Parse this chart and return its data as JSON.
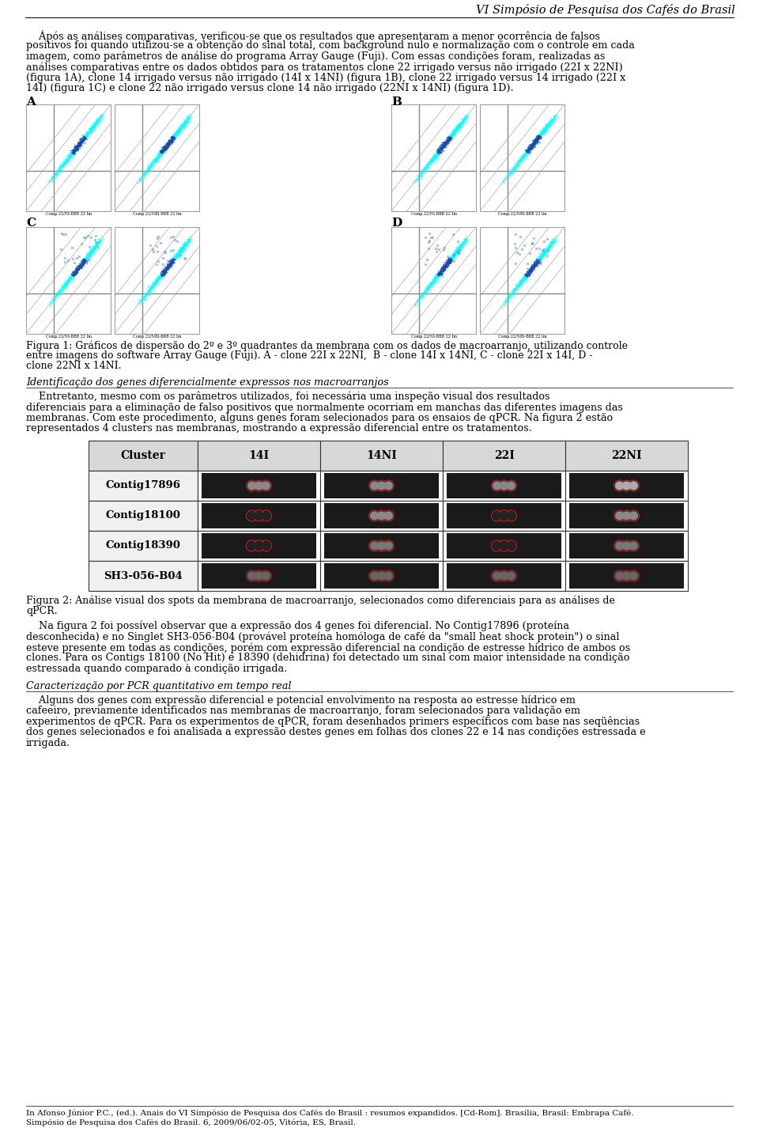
{
  "header_text": "VI Simpósio de Pesquisa dos Cafés do Brasil",
  "para1_lines": [
    "    Ápós as análises comparativas, verificou-se que os resultados que apresentaram a menor ocorrência de falsos",
    "positivos foi quando utilizou-se a obtenção do sinal total, com background nulo e normalização com o controle em cada",
    "imagem, como parâmetros de análise do programa Array Gauge (Fuji). Com essas condições foram, realizadas as",
    "análises comparativas entre os dados obtidos para os tratamentos clone 22 irrigado versus não irrigado (22I x 22NI)",
    "(figura 1A), clone 14 irrigado versus não irrigado (14I x 14NI) (figura 1B), clone 22 irrigado versus 14 irrigado (22I x",
    "14I) (figura 1C) e clone 22 não irrigado versus clone 14 não irrigado (22NI x 14NI) (figura 1D)."
  ],
  "caption1_lines": [
    "Figura 1: Gráficos de dispersão do 2º e 3º quadrantes da membrana com os dados de macroarranjo, utilizando controle",
    "entre imagens do software Array Gauge (Fuji). A - clone 22I x 22NI,  B - clone 14I x 14NI, C - clone 22I x 14I, D -",
    "clone 22NI x 14NI."
  ],
  "section_header": "Identificação dos genes diferencialmente expressos nos macroarranjos",
  "para2_lines": [
    "    Entretanto, mesmo com os parâmetros utilizados, foi necessária uma inspeção visual dos resultados",
    "diferenciais para a eliminação de falso positivos que normalmente ocorriam em manchas das diferentes imagens das",
    "membranas. Com este procedimento, alguns genes foram selecionados para os ensaios de qPCR. Na figura 2 estão",
    "representados 4 clusters nas membranas, mostrando a expressão diferencial entre os tratamentos."
  ],
  "table_headers": [
    "Cluster",
    "14I",
    "14NI",
    "22I",
    "22NI"
  ],
  "table_rows": [
    "Contig17896",
    "Contig18100",
    "Contig18390",
    "SH3-056-B04"
  ],
  "caption2_lines": [
    "Figura 2: Análise visual dos spots da membrana de macroarranjo, selecionados como diferenciais para as análises de",
    "qPCR."
  ],
  "para3_lines": [
    "    Na figura 2 foi possível observar que a expressão dos 4 genes foi diferencial. No Contig17896 (proteína",
    "desconhecida) e no Singlet SH3-056-B04 (provável proteína homóloga de café da \"small heat shock protein\") o sinal",
    "esteve presente em todas as condições, porém com expressão diferencial na condição de estresse hídrico de ambos os",
    "clones. Para os Contigs 18100 (No Hit) e 18390 (dehidrina) foi detectado um sinal com maior intensidade na condição",
    "estressada quando comparado à condição irrigada."
  ],
  "section_header2": "Caracterização por PCR quantitativo em tempo real",
  "para4_lines": [
    "    Alguns dos genes com expressão diferencial e potencial envolvimento na resposta ao estresse hídrico em",
    "cafeeiro, previamente identificados nas membranas de macroarranjo, foram selecionados para validação em",
    "experimentos de qPCR. Para os experimentos de qPCR, foram desenhados primers específicos com base nas seqüências",
    "dos genes selecionados e foi analisada a expressão destes genes em folhas dos clones 22 e 14 nas condições estressada e",
    "irrigada."
  ],
  "footer_lines": [
    "In Afonso Júnior P.C., (ed.). Anais do VI Simpósio de Pesquisa dos Cafés do Brasil : resumos expandidos. [Cd-Rom]. Brasília, Brasil: Embrapa Café.",
    "Simpósio de Pesquisa dos Cafés do Brasil. 6, 2009/06/02-05, Vitória, ES, Brasil."
  ],
  "bg_color": "#ffffff"
}
